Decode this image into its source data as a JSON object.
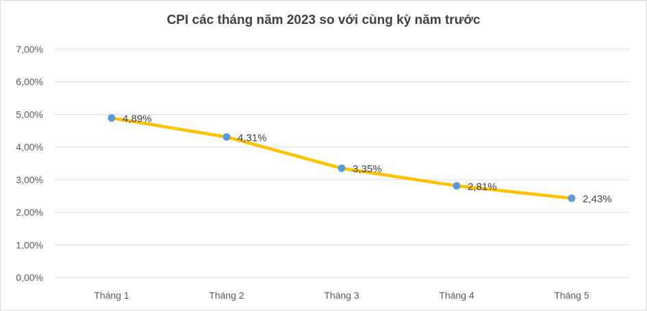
{
  "chart_data": {
    "type": "line",
    "title": "CPI các tháng năm 2023 so với cùng kỳ năm trước",
    "categories": [
      "Tháng 1",
      "Tháng 2",
      "Tháng 3",
      "Tháng 4",
      "Tháng 5"
    ],
    "series": [
      {
        "values": [
          4.89,
          4.31,
          3.35,
          2.81,
          2.43
        ],
        "data_labels": [
          "4,89%",
          "4,31%",
          "3,35%",
          "2,81%",
          "2,43%"
        ],
        "line_color": "#ffc000",
        "marker_color": "#5b9bd5"
      }
    ],
    "ylim": [
      0,
      7
    ],
    "y_ticks": [
      0,
      1,
      2,
      3,
      4,
      5,
      6,
      7
    ],
    "y_tick_labels": [
      "0,00%",
      "1,00%",
      "2,00%",
      "3,00%",
      "4,00%",
      "5,00%",
      "6,00%",
      "7,00%"
    ],
    "xlabel": "",
    "ylabel": "",
    "grid": true,
    "legend": "none",
    "gridline_color": "#d9d9d9"
  }
}
